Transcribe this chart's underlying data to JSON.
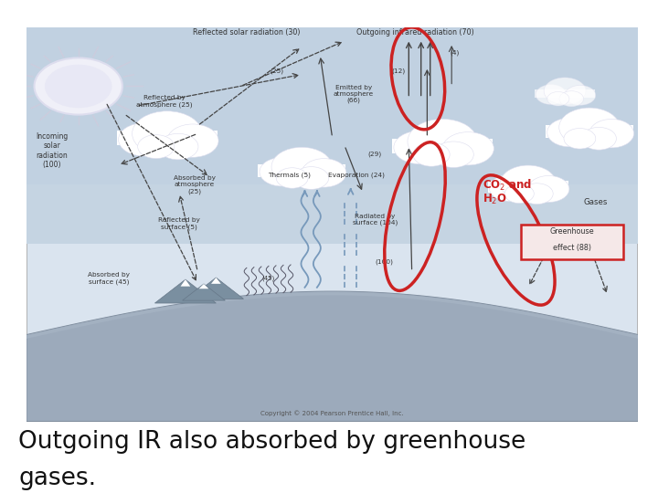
{
  "title_line1": "Outgoing IR also absorbed by greenhouse",
  "title_line2": "gases.",
  "copyright": "Copyright © 2004 Pearson Prentice Hall, Inc.",
  "bg_color": "#ffffff",
  "sky_top_color": "#c8d8e8",
  "sky_mid_color": "#d0dcea",
  "ground_color": "#9aa8be",
  "ground_dark": "#8898ae",
  "red_color": "#cc2222",
  "arrow_color": "#444444",
  "text_color": "#333333",
  "label_fs": 5.8,
  "title_fontsize": 19,
  "diagram_border": "#aaaaaa"
}
